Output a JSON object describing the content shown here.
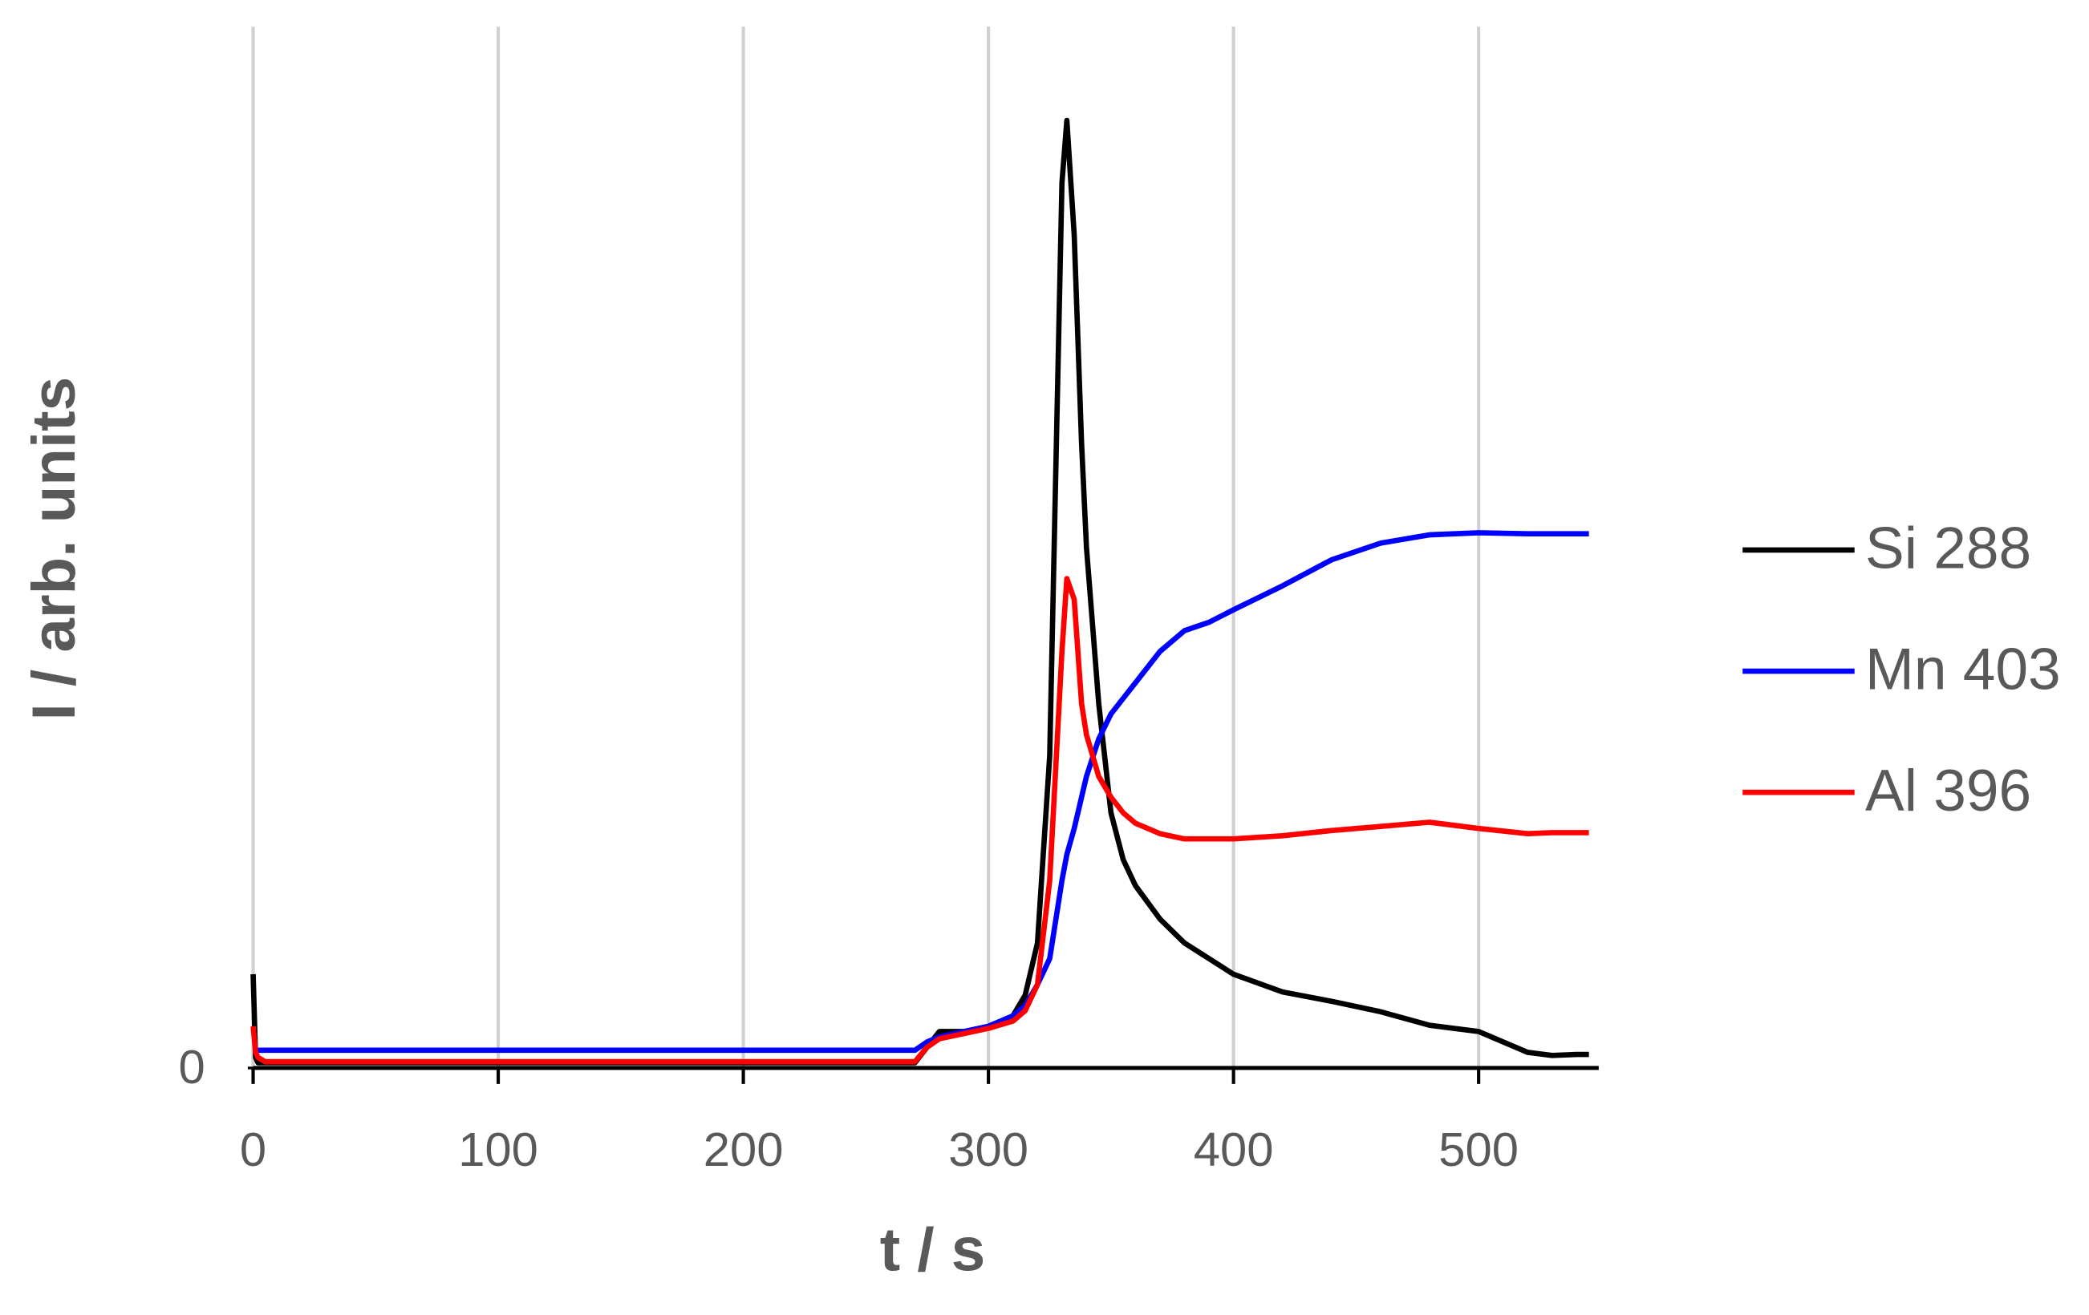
{
  "chart_data": {
    "type": "line",
    "x_label": "t / s",
    "y_label": "I / arb. units",
    "x": [
      0,
      1,
      2,
      5,
      10,
      50,
      100,
      150,
      200,
      250,
      270,
      275,
      280,
      290,
      300,
      310,
      315,
      320,
      325,
      330,
      332,
      335,
      338,
      340,
      345,
      350,
      355,
      360,
      370,
      380,
      390,
      400,
      420,
      440,
      460,
      480,
      500,
      520,
      530,
      540,
      545
    ],
    "series": [
      {
        "name": "Si 288",
        "color": "#000000",
        "values": [
          9,
          1,
          0.5,
          0.5,
          0.5,
          0.5,
          0.5,
          0.5,
          0.5,
          0.5,
          0.5,
          2,
          3.5,
          3.5,
          4,
          5,
          7,
          12,
          30,
          85,
          91,
          80,
          60,
          50,
          35,
          24.5,
          20,
          17.5,
          14.3,
          12,
          10.5,
          9,
          7.3,
          6.4,
          5.4,
          4.1,
          3.5,
          1.5,
          1.2,
          1.3,
          1.3
        ]
      },
      {
        "name": "Mn 403",
        "color": "#0000ff",
        "values": [
          1.7,
          1.7,
          1.7,
          1.7,
          1.7,
          1.7,
          1.7,
          1.7,
          1.7,
          1.7,
          1.7,
          2.5,
          3,
          3.5,
          4,
          5,
          6,
          8,
          10.5,
          18,
          20.5,
          23,
          26,
          28,
          31.6,
          34,
          35.5,
          37,
          40,
          42,
          42.8,
          44,
          46.3,
          48.8,
          50.4,
          51.2,
          51.4,
          51.3,
          51.3,
          51.3,
          51.3
        ]
      },
      {
        "name": "Al 396",
        "color": "#ff0000",
        "values": [
          4,
          1.5,
          1,
          0.6,
          0.6,
          0.6,
          0.6,
          0.6,
          0.6,
          0.6,
          0.6,
          2,
          2.8,
          3.3,
          3.8,
          4.5,
          5.5,
          8,
          18,
          40,
          47,
          45,
          35,
          32,
          28,
          26,
          24.5,
          23.5,
          22.5,
          22,
          22,
          22,
          22.3,
          22.8,
          23.2,
          23.6,
          23,
          22.5,
          22.6,
          22.6,
          22.6
        ]
      }
    ],
    "xlim": [
      0,
      549
    ],
    "ylim": [
      0,
      100
    ],
    "xticks": [
      0,
      100,
      200,
      300,
      400,
      500
    ],
    "yticks": [
      0
    ],
    "grid": "x",
    "legend": "right"
  }
}
